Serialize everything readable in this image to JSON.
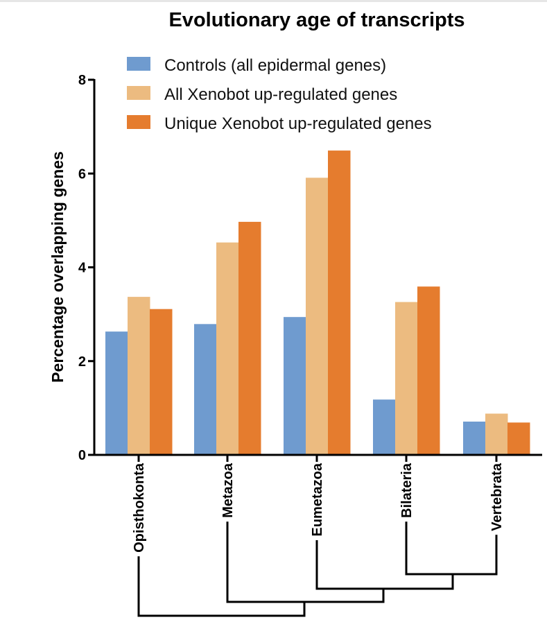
{
  "chart_data": {
    "type": "bar",
    "title": "Evolutionary age of transcripts",
    "xlabel": "",
    "ylabel": "Percentage overlapping genes",
    "ylim": [
      0,
      8
    ],
    "yticks": [
      0,
      2,
      4,
      6,
      8
    ],
    "grid": false,
    "legend_position": "top",
    "categories": [
      "Opisthokonta",
      "Metazoa",
      "Eumetazoa",
      "Bilateria",
      "Vertebrata"
    ],
    "series": [
      {
        "name": "Controls (all epidermal genes)",
        "color": "#6f9bcf",
        "values": [
          2.63,
          2.79,
          2.94,
          1.18,
          0.71
        ]
      },
      {
        "name": "All Xenobot up-regulated genes",
        "color": "#ecbb80",
        "values": [
          3.37,
          4.53,
          5.91,
          3.26,
          0.88
        ]
      },
      {
        "name": "Unique Xenobot up-regulated genes",
        "color": "#e57c2e",
        "values": [
          3.11,
          4.97,
          6.49,
          3.59,
          0.69
        ]
      }
    ],
    "tree": {
      "description": "Phylogenetic cladogram below x-axis",
      "nesting": [
        [
          "Opisthokonta",
          [
            [
              "Metazoa",
              [
                [
                  "Eumetazoa",
                  [
                    [
                      "Bilateria",
                      "Vertebrata"
                    ]
                  ]
                ]
              ]
            ]
          ]
        ]
      ]
    }
  }
}
